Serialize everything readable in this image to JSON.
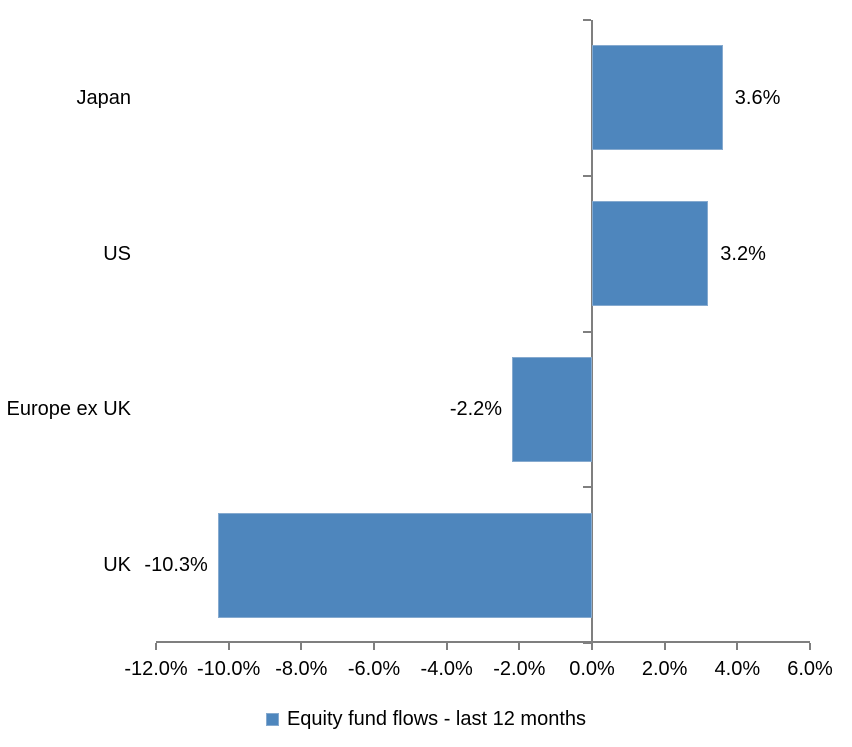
{
  "chart_data": {
    "type": "bar",
    "orientation": "horizontal",
    "title": "",
    "categories": [
      "Japan",
      "US",
      "Europe ex UK",
      "UK"
    ],
    "values": [
      3.6,
      3.2,
      -2.2,
      -10.3
    ],
    "value_labels": [
      "3.6%",
      "3.2%",
      "-2.2%",
      "-10.3%"
    ],
    "series_name": "Equity fund flows - last 12 months",
    "xlim": [
      -12,
      6
    ],
    "x_ticks": [
      {
        "value": -12,
        "label": "-12.0%"
      },
      {
        "value": -10,
        "label": "-10.0%"
      },
      {
        "value": -8,
        "label": "-8.0%"
      },
      {
        "value": -6,
        "label": "-6.0%"
      },
      {
        "value": -4,
        "label": "-4.0%"
      },
      {
        "value": -2,
        "label": "-2.0%"
      },
      {
        "value": 0,
        "label": "0.0%"
      },
      {
        "value": 2,
        "label": "2.0%"
      },
      {
        "value": 4,
        "label": "4.0%"
      },
      {
        "value": 6,
        "label": "6.0%"
      }
    ],
    "grid": "off",
    "legend_position": "bottom",
    "legend": "Equity fund flows - last 12 months",
    "colors": {
      "bar_fill": "#4E86BD",
      "bar_border": "#86AACF",
      "axis": "#7F7F7F",
      "text": "#000000",
      "background": "#FFFFFF"
    }
  }
}
